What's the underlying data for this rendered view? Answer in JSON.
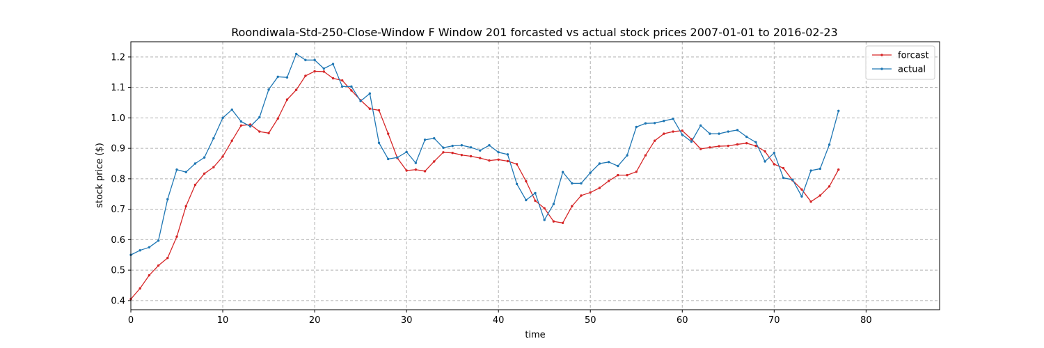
{
  "chart_data": {
    "type": "line",
    "title": "Roondiwala-Std-250-Close-Window F Window 201 forcasted vs actual stock prices 2007-01-01 to 2016-02-23",
    "xlabel": "time",
    "ylabel": "stock price ($)",
    "xlim": [
      0,
      88
    ],
    "ylim": [
      0.37,
      1.25
    ],
    "xticks": [
      0,
      10,
      20,
      30,
      40,
      50,
      60,
      70,
      80
    ],
    "yticks": [
      0.4,
      0.5,
      0.6,
      0.7,
      0.8,
      0.9,
      1.0,
      1.1,
      1.2
    ],
    "grid": true,
    "legend_position": "top-right",
    "series": [
      {
        "name": "forcast",
        "color": "#d62728",
        "values": [
          0.405,
          0.44,
          0.483,
          0.515,
          0.54,
          0.61,
          0.71,
          0.78,
          0.817,
          0.838,
          0.873,
          0.925,
          0.975,
          0.978,
          0.955,
          0.95,
          0.998,
          1.06,
          1.092,
          1.138,
          1.153,
          1.152,
          1.13,
          1.123,
          1.09,
          1.058,
          1.03,
          1.025,
          0.948,
          0.868,
          0.827,
          0.83,
          0.825,
          0.857,
          0.887,
          0.885,
          0.878,
          0.874,
          0.868,
          0.86,
          0.863,
          0.858,
          0.848,
          0.792,
          0.728,
          0.703,
          0.66,
          0.655,
          0.71,
          0.745,
          0.755,
          0.77,
          0.793,
          0.812,
          0.812,
          0.823,
          0.877,
          0.925,
          0.948,
          0.955,
          0.958,
          0.93,
          0.898,
          0.903,
          0.907,
          0.908,
          0.913,
          0.917,
          0.908,
          0.89,
          0.848,
          0.835,
          0.795,
          0.765,
          0.725,
          0.745,
          0.775,
          0.83
        ]
      },
      {
        "name": "actual",
        "color": "#1f77b4",
        "values": [
          0.55,
          0.565,
          0.575,
          0.597,
          0.733,
          0.83,
          0.822,
          0.85,
          0.87,
          0.933,
          1.0,
          1.027,
          0.988,
          0.972,
          1.002,
          1.093,
          1.135,
          1.133,
          1.21,
          1.19,
          1.19,
          1.162,
          1.177,
          1.103,
          1.103,
          1.055,
          1.08,
          0.918,
          0.865,
          0.87,
          0.888,
          0.852,
          0.928,
          0.933,
          0.902,
          0.908,
          0.91,
          0.903,
          0.893,
          0.91,
          0.887,
          0.88,
          0.783,
          0.73,
          0.753,
          0.665,
          0.717,
          0.822,
          0.785,
          0.785,
          0.82,
          0.85,
          0.855,
          0.842,
          0.877,
          0.97,
          0.982,
          0.983,
          0.99,
          0.997,
          0.945,
          0.922,
          0.975,
          0.948,
          0.948,
          0.955,
          0.96,
          0.938,
          0.92,
          0.857,
          0.885,
          0.803,
          0.797,
          0.742,
          0.827,
          0.833,
          0.912,
          1.023
        ]
      }
    ]
  }
}
